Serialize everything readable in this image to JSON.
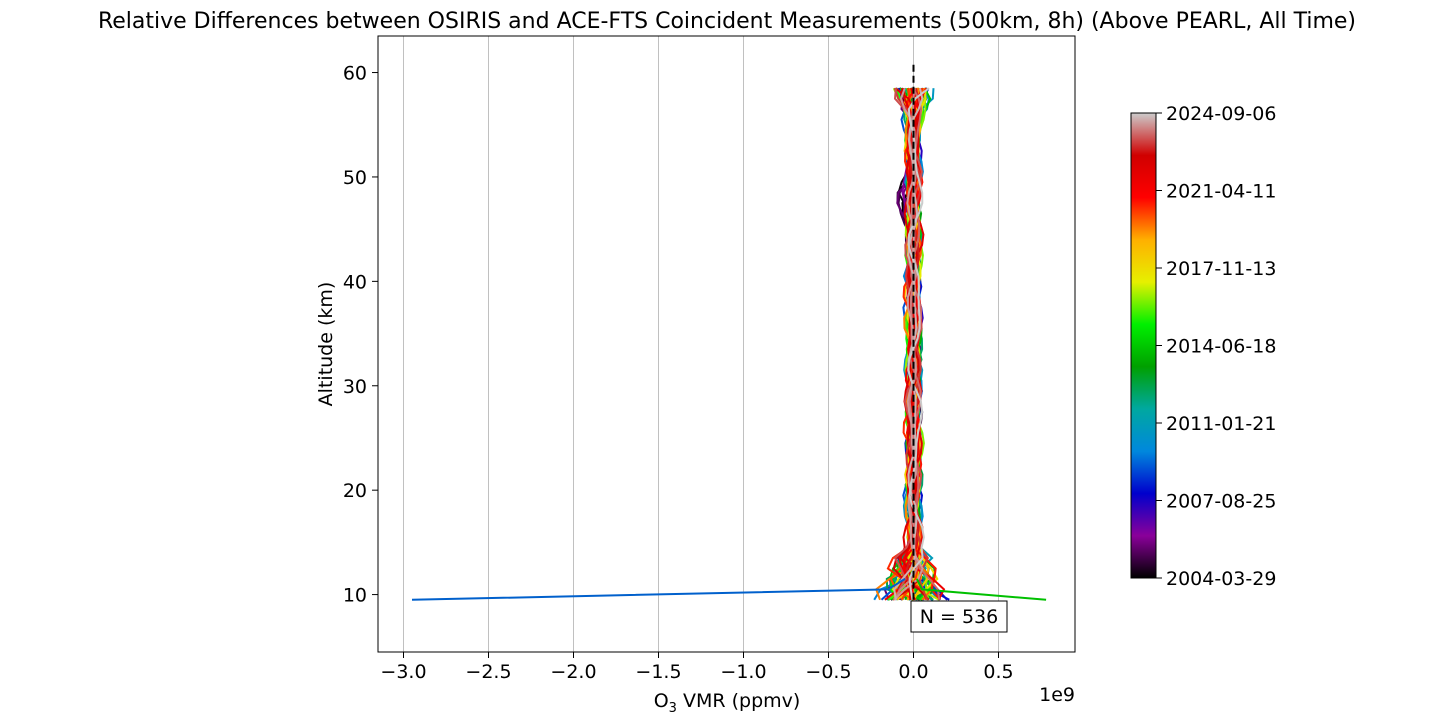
{
  "chart_data": {
    "type": "line",
    "title": "Relative Differences between OSIRIS and ACE-FTS Coincident Measurements (500km, 8h) (Above PEARL, All Time)",
    "xlabel_main": "O",
    "xlabel_sub": "3",
    "xlabel_rest": " VMR (ppmv)",
    "ylabel": "Altitude (km)",
    "x_offset_label": "1e9",
    "xlim": [
      -3.15,
      0.95
    ],
    "ylim": [
      4.5,
      63.5
    ],
    "x_ticks": [
      -3.0,
      -2.5,
      -2.0,
      -1.5,
      -1.0,
      -0.5,
      0.0,
      0.5
    ],
    "x_tick_labels": [
      "−3.0",
      "−2.5",
      "−2.0",
      "−1.5",
      "−1.0",
      "−0.5",
      "0.0",
      "0.5"
    ],
    "y_ticks": [
      10,
      20,
      30,
      40,
      50,
      60
    ],
    "y_tick_labels": [
      "10",
      "20",
      "30",
      "40",
      "50",
      "60"
    ],
    "grid": "vertical",
    "annotation": "N = 536",
    "reference_line": {
      "x": 0,
      "y_range": [
        9.5,
        61
      ],
      "style": "dashed",
      "color": "#000000"
    },
    "colorbar": {
      "tick_labels": [
        "2004-03-29",
        "2007-08-25",
        "2011-01-21",
        "2014-06-18",
        "2017-11-13",
        "2021-04-11",
        "2024-09-06"
      ],
      "colormap_stops": [
        "#000000",
        "#8a009a",
        "#0000cc",
        "#0088dd",
        "#00a8a0",
        "#00a000",
        "#00f000",
        "#e6f000",
        "#ffb000",
        "#ff0000",
        "#d00000",
        "#cccccc"
      ]
    },
    "series_count": 536,
    "outlier_series": [
      {
        "color": "#0060cc",
        "points": [
          [
            -2.95,
            9.5
          ],
          [
            -0.15,
            10.5
          ],
          [
            -0.05,
            11.5
          ]
        ]
      },
      {
        "color": "#00c000",
        "points": [
          [
            0.02,
            11.5
          ],
          [
            0.05,
            10.5
          ],
          [
            0.78,
            9.5
          ]
        ]
      }
    ]
  }
}
